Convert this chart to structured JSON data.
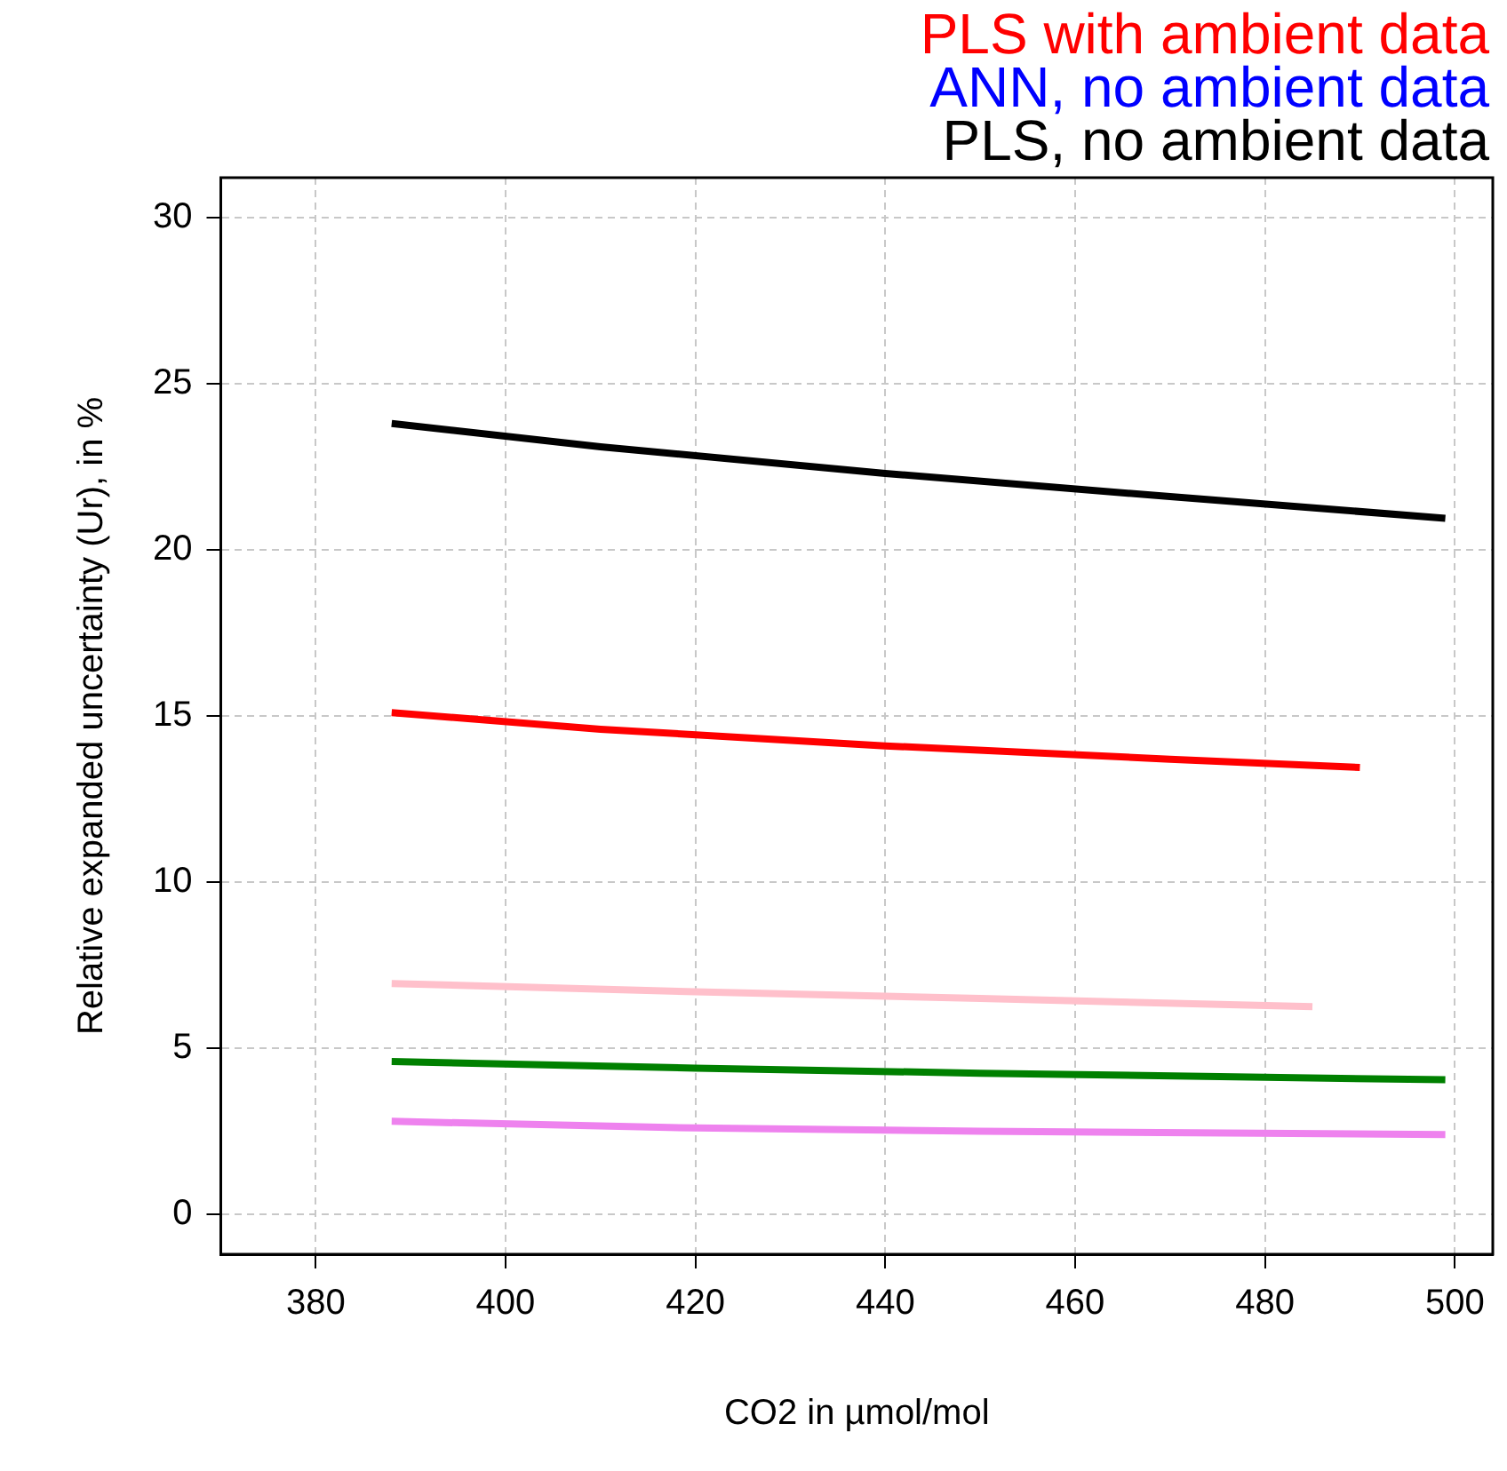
{
  "chart_data": {
    "type": "line",
    "xlabel": "CO2 in µmol/mol",
    "ylabel": "Relative expanded uncertainty (Ur), in %",
    "xlim": [
      370,
      504
    ],
    "xticks": [
      380,
      400,
      420,
      440,
      460,
      480,
      500
    ],
    "ylim": [
      -1.2,
      31.2
    ],
    "yticks": [
      0,
      5,
      10,
      15,
      20,
      25,
      30
    ],
    "grid": true,
    "legend": "top right",
    "marker": "none",
    "line_style": "solid",
    "series": [
      {
        "name": "PLS with ambient data",
        "color": "#ff0000",
        "x": [
          388,
          410,
          440,
          470,
          490
        ],
        "values": [
          15.1,
          14.6,
          14.1,
          13.7,
          13.45
        ]
      },
      {
        "name": "ANN, no ambient data",
        "color": "#0000ff"
      },
      {
        "name": "PLS, no ambient data",
        "color": "#000000",
        "x": [
          388,
          410,
          440,
          470,
          499
        ],
        "values": [
          23.8,
          23.1,
          22.3,
          21.6,
          20.95
        ]
      },
      {
        "color": "#ffc0cb",
        "x": [
          388,
          420,
          450,
          485
        ],
        "values": [
          6.95,
          6.7,
          6.5,
          6.25
        ]
      },
      {
        "color": "#008000",
        "x": [
          388,
          420,
          450,
          499
        ],
        "values": [
          4.6,
          4.4,
          4.25,
          4.05
        ]
      },
      {
        "color": "#ee82ee",
        "x": [
          388,
          420,
          450,
          499
        ],
        "values": [
          2.8,
          2.6,
          2.5,
          2.4
        ]
      }
    ]
  }
}
